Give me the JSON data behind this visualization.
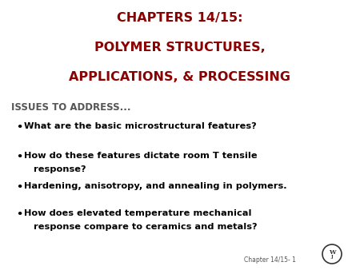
{
  "title_line1": "CHAPTERS 14/15:",
  "title_line2": "POLYMER STRUCTURES,",
  "title_line3": "APPLICATIONS, & PROCESSING",
  "title_color": "#8B0000",
  "subtitle": "ISSUES TO ADDRESS...",
  "subtitle_color": "#555555",
  "bullet_items": [
    [
      "What are the basic microstructural features?",
      ""
    ],
    [
      "How do these features dictate room T tensile",
      "response?"
    ],
    [
      "Hardening, anisotropy, and annealing in polymers.",
      ""
    ],
    [
      "How does elevated temperature mechanical",
      "response compare to ceramics and metals?"
    ]
  ],
  "bullet_color": "#000000",
  "background_color": "#ffffff",
  "footer_text": "Chapter 14/15- 1",
  "footer_color": "#555555",
  "title_fontsize": 11.5,
  "subtitle_fontsize": 8.5,
  "bullet_fontsize": 8.2
}
